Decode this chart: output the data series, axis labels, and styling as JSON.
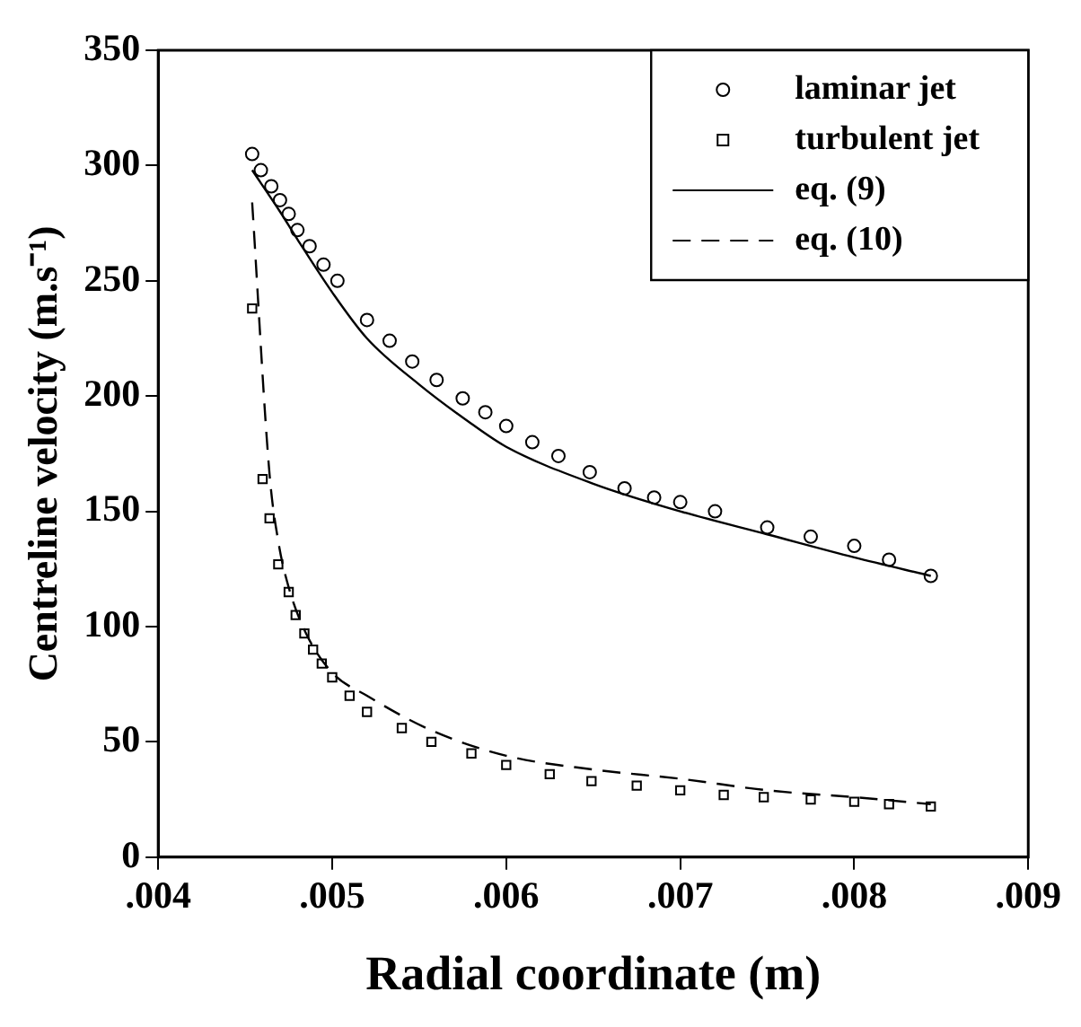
{
  "chart_data": {
    "type": "scatter",
    "xlabel": "Radial coordinate (m)",
    "ylabel": "Centreline velocity (m.s⁻¹)",
    "xlim": [
      0.004,
      0.009
    ],
    "xticks": [
      {
        "value": 0.004,
        "label": ".004"
      },
      {
        "value": 0.005,
        "label": ".005"
      },
      {
        "value": 0.006,
        "label": ".006"
      },
      {
        "value": 0.007,
        "label": ".007"
      },
      {
        "value": 0.008,
        "label": ".008"
      },
      {
        "value": 0.009,
        "label": ".009"
      }
    ],
    "ylim": [
      0,
      350
    ],
    "yticks": [
      0,
      50,
      100,
      150,
      200,
      250,
      300,
      350
    ],
    "grid": false,
    "legend": "top right",
    "series": [
      {
        "name": "laminar jet",
        "marker": "circle",
        "color": "#000000",
        "x": [
          0.00454,
          0.00459,
          0.00465,
          0.0047,
          0.00475,
          0.0048,
          0.00487,
          0.00495,
          0.00503,
          0.0052,
          0.00533,
          0.00546,
          0.0056,
          0.00575,
          0.00588,
          0.006,
          0.00615,
          0.0063,
          0.00648,
          0.00668,
          0.00685,
          0.007,
          0.0072,
          0.0075,
          0.00775,
          0.008,
          0.0082,
          0.00844
        ],
        "values": [
          305,
          298,
          291,
          285,
          279,
          272,
          265,
          257,
          250,
          233,
          224,
          215,
          207,
          199,
          193,
          187,
          180,
          174,
          167,
          160,
          156,
          154,
          150,
          143,
          139,
          135,
          129,
          122
        ]
      },
      {
        "name": "turbulent jet",
        "marker": "square",
        "color": "#000000",
        "x": [
          0.00454,
          0.0046,
          0.00464,
          0.00469,
          0.00475,
          0.00479,
          0.00484,
          0.00489,
          0.00494,
          0.005,
          0.0051,
          0.0052,
          0.0054,
          0.00557,
          0.0058,
          0.006,
          0.00625,
          0.00649,
          0.00675,
          0.007,
          0.00725,
          0.00748,
          0.00775,
          0.008,
          0.0082,
          0.00844
        ],
        "values": [
          238,
          164,
          147,
          127,
          115,
          105,
          97,
          90,
          84,
          78,
          70,
          63,
          56,
          50,
          45,
          40,
          36,
          33,
          31,
          29,
          27,
          26,
          25,
          24,
          23,
          22
        ]
      },
      {
        "name": "eq. (9)",
        "type": "line",
        "marker": "none",
        "line_style": "solid",
        "color": "#000000",
        "x": [
          0.00454,
          0.0047,
          0.0048,
          0.005,
          0.0052,
          0.0055,
          0.0058,
          0.006,
          0.0065,
          0.007,
          0.0075,
          0.008,
          0.00844
        ],
        "values": [
          298,
          280,
          268,
          245,
          225,
          205,
          188,
          178,
          162,
          150,
          140,
          130,
          122
        ]
      },
      {
        "name": "eq. (10)",
        "type": "line",
        "marker": "none",
        "line_style": "dashed",
        "color": "#000000",
        "x": [
          0.00454,
          0.00464,
          0.00469,
          0.00475,
          0.00485,
          0.005,
          0.0052,
          0.00557,
          0.006,
          0.0065,
          0.007,
          0.0075,
          0.008,
          0.00844
        ],
        "values": [
          284,
          166,
          137,
          117,
          97,
          80,
          70,
          55,
          44,
          38,
          34,
          29,
          26,
          23
        ]
      }
    ]
  }
}
